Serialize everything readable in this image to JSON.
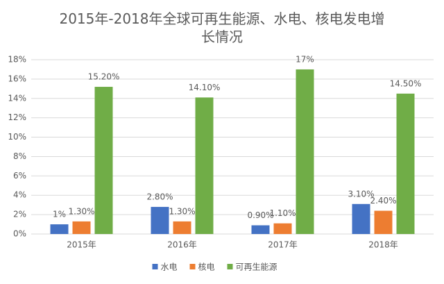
{
  "chart_data": {
    "type": "bar",
    "title": "2015年-2018年全球可再生能源、水电、核电发电增长情况",
    "categories": [
      "2015年",
      "2016年",
      "2017年",
      "2018年"
    ],
    "series": [
      {
        "name": "水电",
        "color": "#4472c4",
        "values": [
          1,
          2.8,
          0.9,
          3.1
        ],
        "value_labels": [
          "1%",
          "2.80%",
          "0.90%",
          "3.10%"
        ]
      },
      {
        "name": "核电",
        "color": "#ed7d31",
        "values": [
          1.3,
          1.3,
          1.1,
          2.4
        ],
        "value_labels": [
          "1.30%",
          "1.30%",
          "1.10%",
          "2.40%"
        ]
      },
      {
        "name": "可再生能源",
        "color": "#70ad47",
        "values": [
          15.2,
          14.1,
          17,
          14.5
        ],
        "value_labels": [
          "15.20%",
          "14.10%",
          "17%",
          "14.50%"
        ]
      }
    ],
    "ylim": [
      0,
      18
    ],
    "yticks": [
      {
        "value": 0,
        "label": "0%"
      },
      {
        "value": 2,
        "label": "2%"
      },
      {
        "value": 4,
        "label": "4%"
      },
      {
        "value": 6,
        "label": "6%"
      },
      {
        "value": 8,
        "label": "8%"
      },
      {
        "value": 10,
        "label": "10%"
      },
      {
        "value": 12,
        "label": "12%"
      },
      {
        "value": 14,
        "label": "14%"
      },
      {
        "value": 16,
        "label": "16%"
      },
      {
        "value": 18,
        "label": "18%"
      }
    ],
    "grid": true,
    "legend": "bottom"
  }
}
